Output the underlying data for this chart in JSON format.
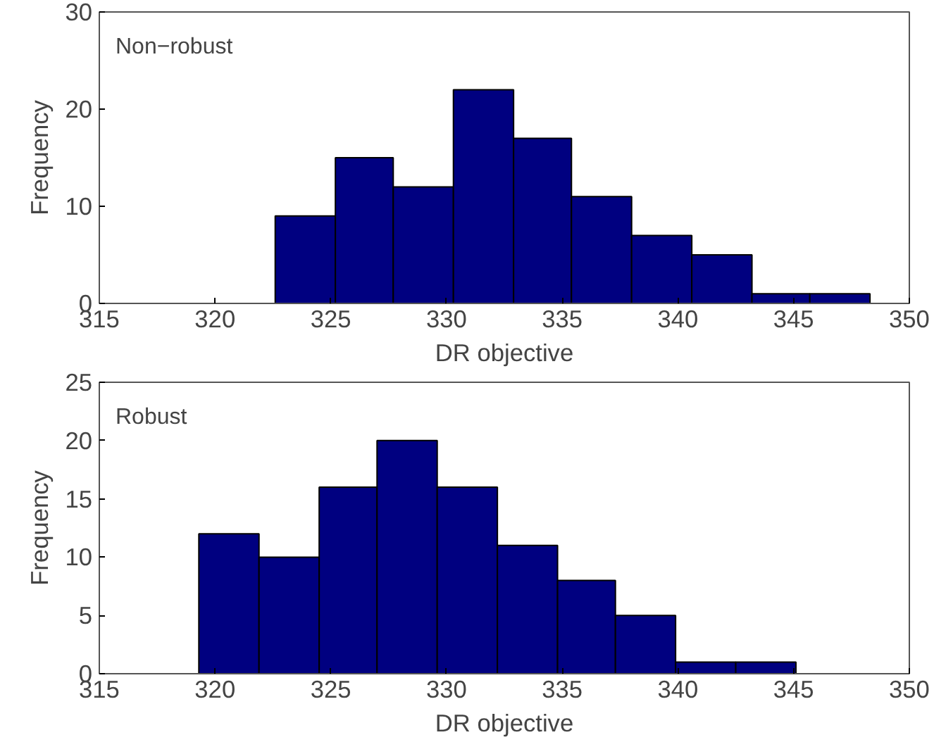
{
  "chart_data": [
    {
      "type": "histogram",
      "xlabel": "DR objective",
      "ylabel": "Frequency",
      "annotations": [
        "Non−robust"
      ],
      "bins": [
        322.6,
        325.2,
        327.7,
        330.3,
        332.9,
        335.4,
        338.0,
        340.6,
        343.2,
        345.7,
        348.3
      ],
      "values": [
        9,
        15,
        12,
        22,
        17,
        11,
        7,
        5,
        1,
        1
      ],
      "color": "#000080",
      "xlim": [
        315,
        350
      ],
      "xticks": [
        315,
        320,
        325,
        330,
        335,
        340,
        345,
        350
      ],
      "ylim": [
        0,
        30
      ],
      "yticks": [
        0,
        10,
        20,
        30
      ],
      "grid": false
    },
    {
      "type": "histogram",
      "xlabel": "DR objective",
      "ylabel": "Frequency",
      "annotations": [
        "Robust"
      ],
      "bins": [
        319.3,
        321.9,
        324.5,
        327.0,
        329.6,
        332.2,
        334.8,
        337.3,
        339.9,
        342.5,
        345.1
      ],
      "values": [
        12,
        10,
        16,
        20,
        16,
        11,
        8,
        5,
        1,
        1
      ],
      "color": "#000080",
      "xlim": [
        315,
        350
      ],
      "xticks": [
        315,
        320,
        325,
        330,
        335,
        340,
        345,
        350
      ],
      "ylim": [
        0,
        25
      ],
      "yticks": [
        0,
        5,
        10,
        15,
        20,
        25
      ],
      "grid": false
    }
  ]
}
